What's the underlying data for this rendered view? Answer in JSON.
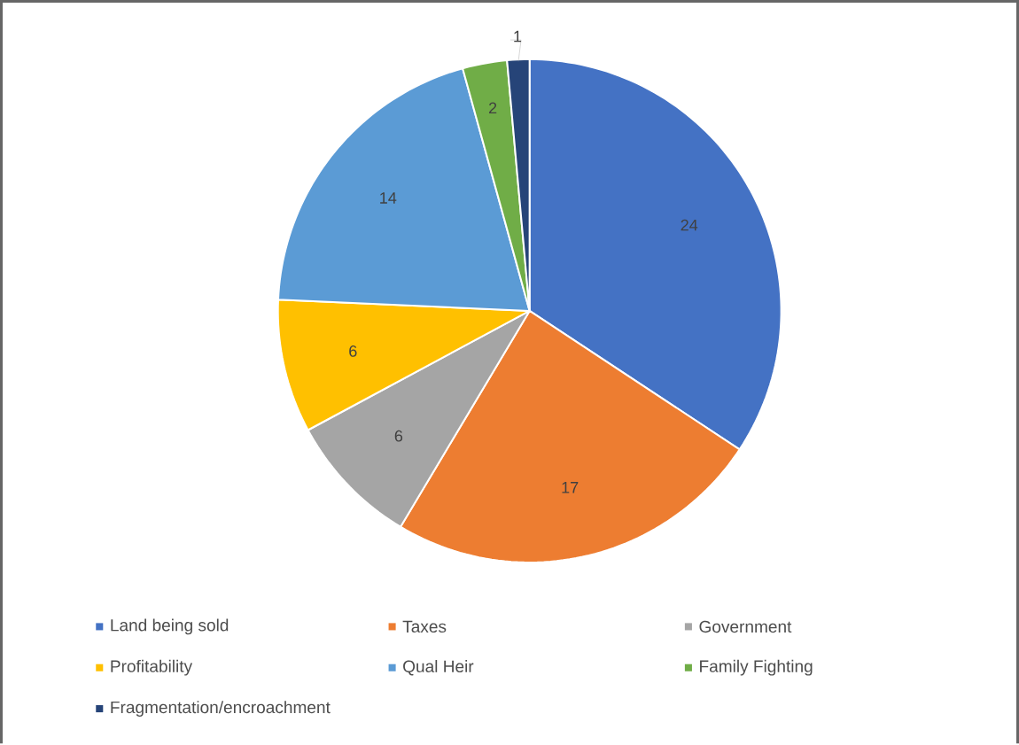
{
  "chart_data": {
    "type": "pie",
    "categories": [
      "Land being sold",
      "Taxes",
      "Government",
      "Profitability",
      "Qual Heir",
      "Family Fighting",
      "Fragmentation/encroachment"
    ],
    "values": [
      24,
      17,
      6,
      6,
      14,
      2,
      1
    ],
    "colors": [
      "#4472c4",
      "#ed7d31",
      "#a5a5a5",
      "#ffc000",
      "#5b9bd5",
      "#70ad47",
      "#264478"
    ],
    "data_labels": true,
    "legend": "bottom"
  }
}
